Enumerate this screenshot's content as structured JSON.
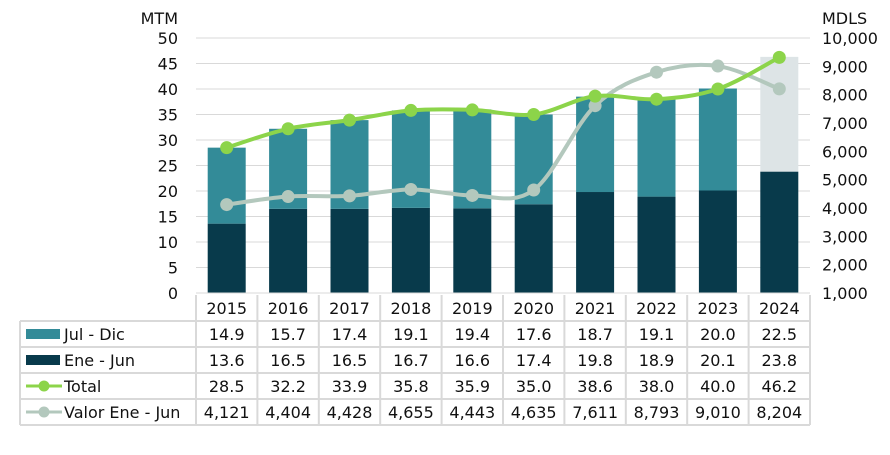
{
  "chart_data": {
    "type": "bar",
    "stacked": true,
    "left_axis_label": "MTM",
    "right_axis_label": "MDLS",
    "ylim": [
      0,
      50
    ],
    "y2lim": [
      1000,
      10000
    ],
    "left_ticks": [
      "0",
      "5",
      "10",
      "15",
      "20",
      "25",
      "30",
      "35",
      "40",
      "45",
      "50"
    ],
    "right_ticks": [
      "1,000",
      "2,000",
      "3,000",
      "4,000",
      "5,000",
      "6,000",
      "7,000",
      "8,000",
      "9,000",
      "10,000"
    ],
    "categories": [
      "2015",
      "2016",
      "2017",
      "2018",
      "2019",
      "2020",
      "2021",
      "2022",
      "2023",
      "2024"
    ],
    "grid": true,
    "series": [
      {
        "name": "Jul - Dic",
        "kind": "bar",
        "color": "#338b98",
        "last_color": "#dde4e6",
        "values": [
          14.9,
          15.7,
          17.4,
          19.1,
          19.4,
          17.6,
          18.7,
          19.1,
          20.0,
          22.5
        ],
        "labels": [
          "14.9",
          "15.7",
          "17.4",
          "19.1",
          "19.4",
          "17.6",
          "18.7",
          "19.1",
          "20.0",
          "22.5"
        ]
      },
      {
        "name": "Ene - Jun",
        "kind": "bar",
        "color": "#083a4b",
        "values": [
          13.6,
          16.5,
          16.5,
          16.7,
          16.6,
          17.4,
          19.8,
          18.9,
          20.1,
          23.8
        ],
        "labels": [
          "13.6",
          "16.5",
          "16.5",
          "16.7",
          "16.6",
          "17.4",
          "19.8",
          "18.9",
          "20.1",
          "23.8"
        ]
      },
      {
        "name": "Total",
        "kind": "line",
        "axis": "left",
        "color": "#8cd44a",
        "values": [
          28.5,
          32.2,
          33.9,
          35.8,
          35.9,
          35.0,
          38.6,
          38.0,
          40.0,
          46.2
        ],
        "labels": [
          "28.5",
          "32.2",
          "33.9",
          "35.8",
          "35.9",
          "35.0",
          "38.6",
          "38.0",
          "40.0",
          "46.2"
        ]
      },
      {
        "name": "Valor Ene - Jun",
        "kind": "line",
        "axis": "right",
        "color": "#b3c8bd",
        "values": [
          4121,
          4404,
          4428,
          4655,
          4443,
          4635,
          7611,
          8793,
          9010,
          8204
        ],
        "labels": [
          "4,121",
          "4,404",
          "4,428",
          "4,655",
          "4,443",
          "4,635",
          "7,611",
          "8,793",
          "9,010",
          "8,204"
        ]
      }
    ]
  }
}
